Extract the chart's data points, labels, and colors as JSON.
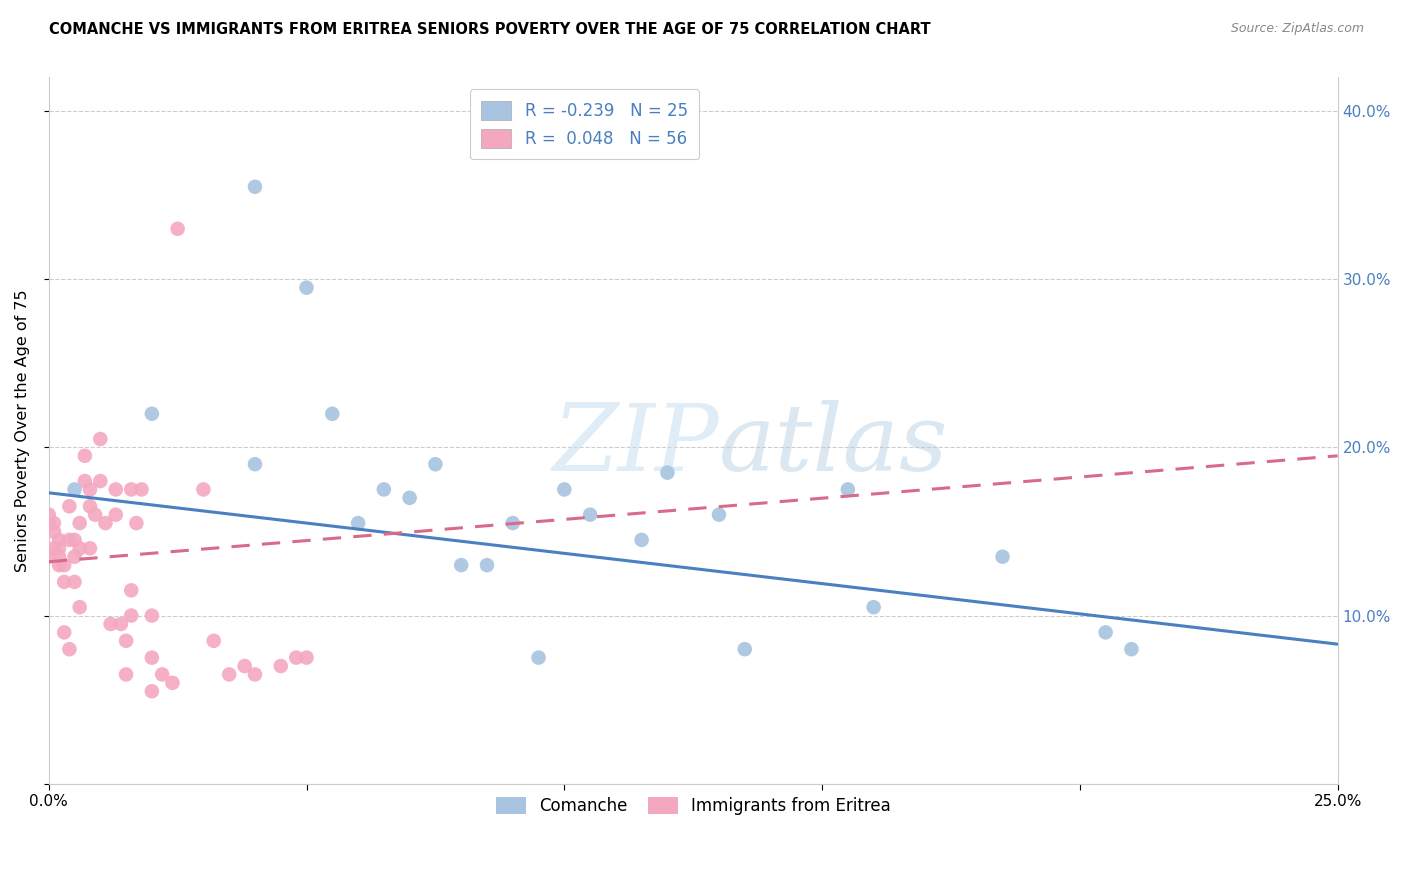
{
  "title": "COMANCHE VS IMMIGRANTS FROM ERITREA SENIORS POVERTY OVER THE AGE OF 75 CORRELATION CHART",
  "source": "Source: ZipAtlas.com",
  "ylabel": "Seniors Poverty Over the Age of 75",
  "xlim": [
    0.0,
    0.25
  ],
  "ylim": [
    0.0,
    0.42
  ],
  "blue_color": "#a8c4e0",
  "pink_color": "#f4a8c0",
  "blue_line_color": "#4a7fc1",
  "pink_line_color": "#d96b8a",
  "watermark_zip": "ZIP",
  "watermark_atlas": "atlas",
  "legend_blue_R": "-0.239",
  "legend_blue_N": "25",
  "legend_pink_R": "0.048",
  "legend_pink_N": "56",
  "legend_group1": "Comanche",
  "legend_group2": "Immigrants from Eritrea",
  "comanche_x": [
    0.005,
    0.02,
    0.04,
    0.04,
    0.05,
    0.055,
    0.06,
    0.065,
    0.07,
    0.075,
    0.08,
    0.085,
    0.09,
    0.095,
    0.1,
    0.105,
    0.115,
    0.12,
    0.13,
    0.135,
    0.155,
    0.16,
    0.185,
    0.205,
    0.21
  ],
  "comanche_y": [
    0.175,
    0.22,
    0.355,
    0.19,
    0.295,
    0.22,
    0.155,
    0.175,
    0.17,
    0.19,
    0.13,
    0.13,
    0.155,
    0.075,
    0.175,
    0.16,
    0.145,
    0.185,
    0.16,
    0.08,
    0.175,
    0.105,
    0.135,
    0.09,
    0.08
  ],
  "eritrea_x": [
    0.0,
    0.0,
    0.0,
    0.001,
    0.001,
    0.001,
    0.002,
    0.002,
    0.002,
    0.002,
    0.003,
    0.003,
    0.003,
    0.004,
    0.004,
    0.004,
    0.005,
    0.005,
    0.005,
    0.006,
    0.006,
    0.006,
    0.007,
    0.007,
    0.008,
    0.008,
    0.008,
    0.009,
    0.01,
    0.01,
    0.011,
    0.012,
    0.013,
    0.013,
    0.014,
    0.015,
    0.015,
    0.016,
    0.016,
    0.016,
    0.017,
    0.018,
    0.02,
    0.02,
    0.02,
    0.022,
    0.024,
    0.025,
    0.03,
    0.032,
    0.035,
    0.038,
    0.04,
    0.045,
    0.048,
    0.05
  ],
  "eritrea_y": [
    0.135,
    0.155,
    0.16,
    0.14,
    0.15,
    0.155,
    0.13,
    0.135,
    0.14,
    0.145,
    0.09,
    0.12,
    0.13,
    0.145,
    0.08,
    0.165,
    0.12,
    0.135,
    0.145,
    0.105,
    0.14,
    0.155,
    0.18,
    0.195,
    0.14,
    0.165,
    0.175,
    0.16,
    0.18,
    0.205,
    0.155,
    0.095,
    0.16,
    0.175,
    0.095,
    0.065,
    0.085,
    0.1,
    0.115,
    0.175,
    0.155,
    0.175,
    0.055,
    0.075,
    0.1,
    0.065,
    0.06,
    0.33,
    0.175,
    0.085,
    0.065,
    0.07,
    0.065,
    0.07,
    0.075,
    0.075
  ],
  "blue_line_x": [
    0.0,
    0.25
  ],
  "blue_line_y": [
    0.173,
    0.083
  ],
  "pink_line_x": [
    0.0,
    0.25
  ],
  "pink_line_y": [
    0.132,
    0.195
  ]
}
